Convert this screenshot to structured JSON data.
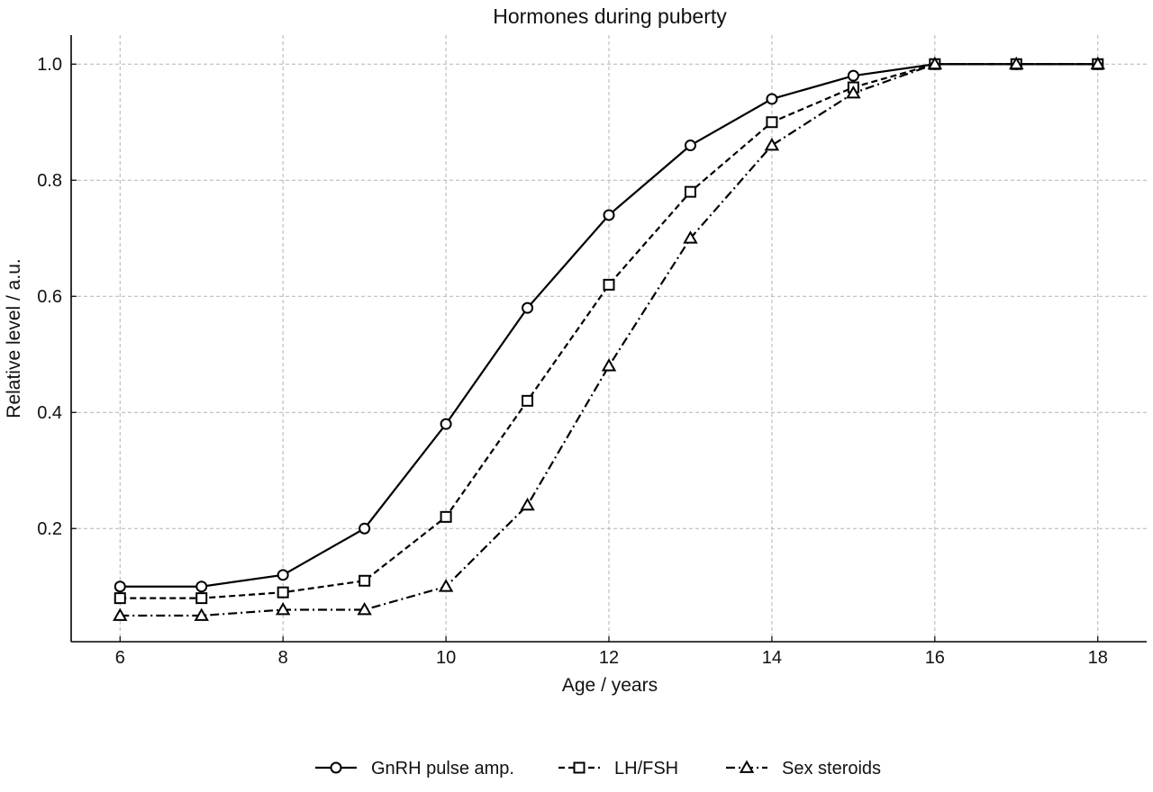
{
  "chart_data": {
    "type": "line",
    "title": "Hormones during puberty",
    "xlabel": "Age / years",
    "ylabel": "Relative level / a.u.",
    "xlim": [
      5.4,
      18.6
    ],
    "ylim": [
      0.005,
      1.05
    ],
    "xticks": [
      6,
      8,
      10,
      12,
      14,
      16,
      18
    ],
    "yticks": [
      0.2,
      0.4,
      0.6,
      0.8,
      1.0
    ],
    "ytick_labels": [
      "0.2",
      "0.4",
      "0.6",
      "0.8",
      "1.0"
    ],
    "grid": true,
    "legend_position": "bottom-center",
    "x": [
      6,
      7,
      8,
      9,
      10,
      11,
      12,
      13,
      14,
      15,
      16,
      17,
      18
    ],
    "series": [
      {
        "name": "GnRH pulse amp.",
        "marker": "circle",
        "linestyle": "solid",
        "values": [
          0.1,
          0.1,
          0.12,
          0.2,
          0.38,
          0.58,
          0.74,
          0.86,
          0.94,
          0.98,
          1.0,
          1.0,
          1.0
        ]
      },
      {
        "name": "LH/FSH",
        "marker": "square",
        "linestyle": "dashed",
        "values": [
          0.08,
          0.08,
          0.09,
          0.11,
          0.22,
          0.42,
          0.62,
          0.78,
          0.9,
          0.96,
          1.0,
          1.0,
          1.0
        ]
      },
      {
        "name": "Sex steroids",
        "marker": "triangle",
        "linestyle": "dashdot",
        "values": [
          0.05,
          0.05,
          0.06,
          0.06,
          0.1,
          0.24,
          0.48,
          0.7,
          0.86,
          0.95,
          1.0,
          1.0,
          1.0
        ]
      }
    ]
  }
}
